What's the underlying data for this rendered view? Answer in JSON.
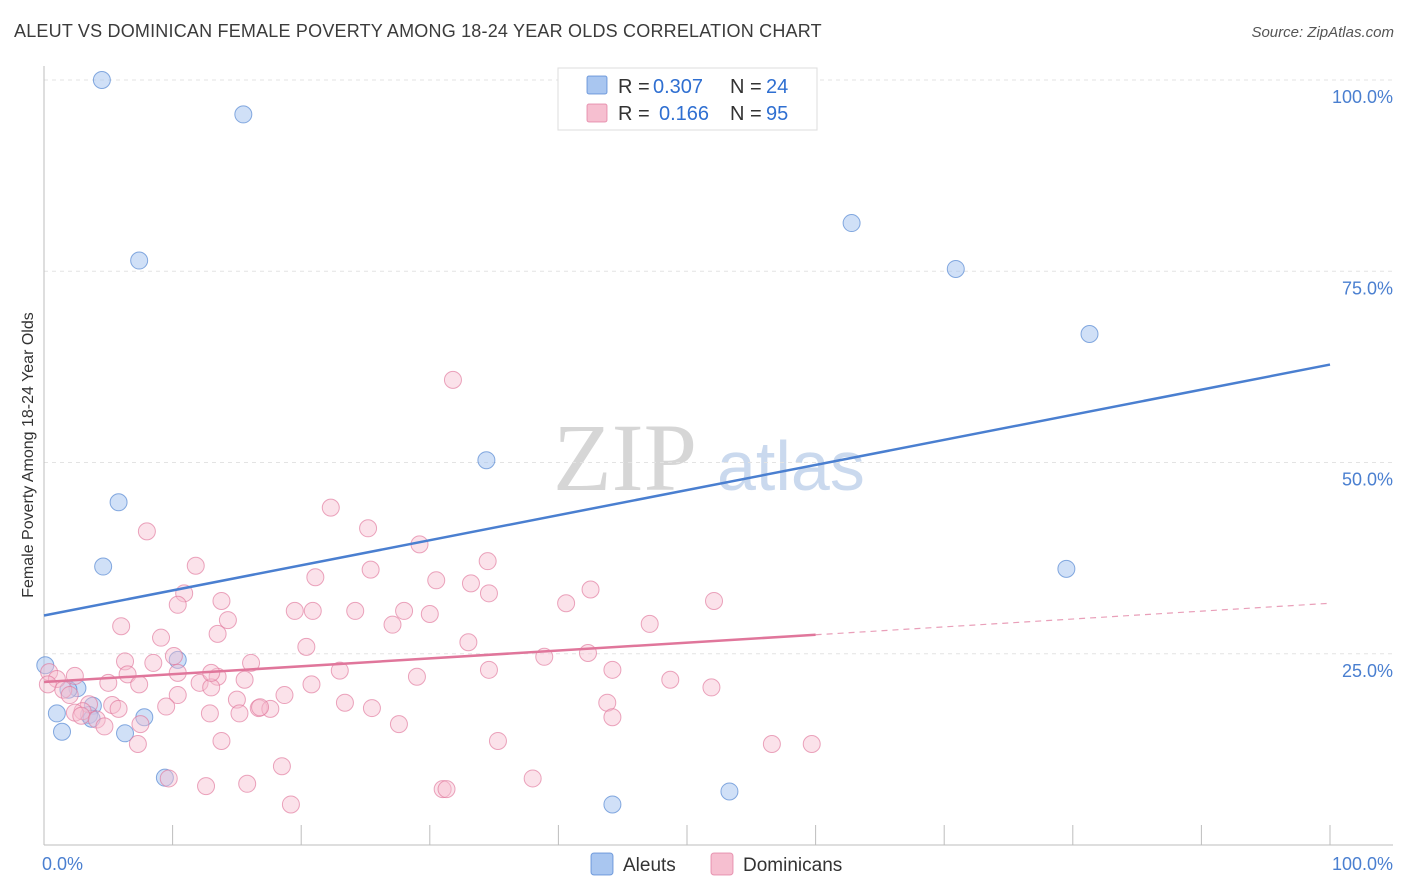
{
  "title": "ALEUT VS DOMINICAN FEMALE POVERTY AMONG 18-24 YEAR OLDS CORRELATION CHART",
  "source": "Source: ZipAtlas.com",
  "watermark": {
    "zip": "ZIP",
    "atlas": "atlas"
  },
  "chart_data": {
    "type": "scatter",
    "title": "ALEUT VS DOMINICAN FEMALE POVERTY AMONG 18-24 YEAR OLDS CORRELATION CHART",
    "xlabel": "",
    "ylabel": "Female Poverty Among 18-24 Year Olds",
    "xlim": [
      0,
      100
    ],
    "ylim": [
      0,
      100
    ],
    "x_tick_labels": [
      "0.0%",
      "100.0%"
    ],
    "y_ticks": [
      25,
      50,
      75,
      100
    ],
    "y_tick_labels": [
      "25.0%",
      "50.0%",
      "75.0%",
      "100.0%"
    ],
    "grid": true,
    "legend_position": "top-center",
    "stats": [
      {
        "r_label": "R =",
        "r_value": "0.307",
        "n_label": "N =",
        "n_value": "24"
      },
      {
        "r_label": "R =",
        "r_value": "0.166",
        "n_label": "N =",
        "n_value": "95"
      }
    ],
    "series": [
      {
        "name": "Aleuts",
        "color": "#4a7fd0",
        "fill": "#a9c6f0",
        "trend": {
          "x": [
            0,
            100
          ],
          "y": [
            30,
            62.8
          ],
          "solid_until": 100
        },
        "points": [
          [
            4.5,
            100
          ],
          [
            15.5,
            95.5
          ],
          [
            7.4,
            76.4
          ],
          [
            62.8,
            81.3
          ],
          [
            70.9,
            75.3
          ],
          [
            81.3,
            66.8
          ],
          [
            34.4,
            50.3
          ],
          [
            5.8,
            44.8
          ],
          [
            4.6,
            36.4
          ],
          [
            79.5,
            36.1
          ],
          [
            0.1,
            23.5
          ],
          [
            10.4,
            24.2
          ],
          [
            2.6,
            20.5
          ],
          [
            1.9,
            20.3
          ],
          [
            3.8,
            18.2
          ],
          [
            1.0,
            17.2
          ],
          [
            3.5,
            17.0
          ],
          [
            7.8,
            16.7
          ],
          [
            3.7,
            16.5
          ],
          [
            1.4,
            14.8
          ],
          [
            6.3,
            14.6
          ],
          [
            9.4,
            8.8
          ],
          [
            44.2,
            5.3
          ],
          [
            53.3,
            7.0
          ]
        ]
      },
      {
        "name": "Dominicans",
        "color": "#e0769b",
        "fill": "#f6bfd0",
        "trend": {
          "x": [
            0,
            100
          ],
          "y": [
            21.3,
            31.6
          ],
          "solid_until": 60
        },
        "points": [
          [
            31.8,
            60.8
          ],
          [
            22.3,
            44.1
          ],
          [
            25.2,
            41.4
          ],
          [
            8.0,
            41.0
          ],
          [
            29.2,
            39.3
          ],
          [
            34.5,
            37.1
          ],
          [
            11.8,
            36.5
          ],
          [
            25.4,
            36.0
          ],
          [
            21.1,
            35.0
          ],
          [
            30.5,
            34.6
          ],
          [
            33.2,
            34.2
          ],
          [
            42.5,
            33.4
          ],
          [
            10.9,
            32.9
          ],
          [
            34.6,
            32.9
          ],
          [
            13.8,
            31.9
          ],
          [
            52.1,
            31.9
          ],
          [
            40.6,
            31.6
          ],
          [
            10.4,
            31.4
          ],
          [
            19.5,
            30.6
          ],
          [
            24.2,
            30.6
          ],
          [
            20.9,
            30.6
          ],
          [
            28.0,
            30.6
          ],
          [
            30.0,
            30.2
          ],
          [
            14.3,
            29.4
          ],
          [
            27.1,
            28.8
          ],
          [
            47.1,
            28.9
          ],
          [
            6.0,
            28.6
          ],
          [
            9.1,
            27.1
          ],
          [
            13.5,
            27.6
          ],
          [
            33.0,
            26.5
          ],
          [
            20.4,
            25.9
          ],
          [
            42.3,
            25.1
          ],
          [
            10.1,
            24.7
          ],
          [
            38.9,
            24.6
          ],
          [
            6.3,
            24.0
          ],
          [
            16.1,
            23.8
          ],
          [
            8.5,
            23.8
          ],
          [
            23.0,
            22.8
          ],
          [
            34.6,
            22.9
          ],
          [
            44.2,
            22.9
          ],
          [
            0.4,
            22.6
          ],
          [
            10.4,
            22.5
          ],
          [
            6.5,
            22.3
          ],
          [
            2.4,
            22.1
          ],
          [
            1.0,
            21.7
          ],
          [
            29.0,
            22.0
          ],
          [
            13.5,
            22.0
          ],
          [
            15.6,
            21.6
          ],
          [
            48.7,
            21.6
          ],
          [
            5.0,
            21.2
          ],
          [
            12.1,
            21.2
          ],
          [
            7.4,
            21.0
          ],
          [
            0.3,
            21.0
          ],
          [
            13.0,
            20.6
          ],
          [
            51.9,
            20.6
          ],
          [
            1.5,
            20.3
          ],
          [
            2.0,
            19.6
          ],
          [
            10.4,
            19.6
          ],
          [
            18.7,
            19.6
          ],
          [
            15.0,
            19.0
          ],
          [
            23.4,
            18.6
          ],
          [
            3.5,
            18.4
          ],
          [
            5.3,
            18.3
          ],
          [
            43.8,
            18.6
          ],
          [
            9.5,
            18.1
          ],
          [
            16.7,
            17.9
          ],
          [
            17.6,
            17.8
          ],
          [
            5.8,
            17.8
          ],
          [
            3.0,
            17.5
          ],
          [
            2.4,
            17.3
          ],
          [
            12.9,
            17.2
          ],
          [
            15.2,
            17.2
          ],
          [
            2.9,
            16.9
          ],
          [
            4.1,
            16.4
          ],
          [
            44.2,
            16.7
          ],
          [
            27.6,
            15.8
          ],
          [
            7.5,
            15.8
          ],
          [
            4.7,
            15.5
          ],
          [
            13.8,
            13.6
          ],
          [
            35.3,
            13.6
          ],
          [
            56.6,
            13.2
          ],
          [
            59.7,
            13.2
          ],
          [
            7.3,
            13.2
          ],
          [
            18.5,
            10.3
          ],
          [
            9.7,
            8.7
          ],
          [
            38.0,
            8.7
          ],
          [
            15.8,
            8.0
          ],
          [
            12.6,
            7.7
          ],
          [
            31.0,
            7.3
          ],
          [
            31.3,
            7.3
          ],
          [
            19.2,
            5.3
          ],
          [
            25.5,
            17.9
          ],
          [
            16.8,
            18.0
          ],
          [
            20.8,
            21.0
          ],
          [
            13.0,
            22.5
          ]
        ]
      }
    ]
  }
}
